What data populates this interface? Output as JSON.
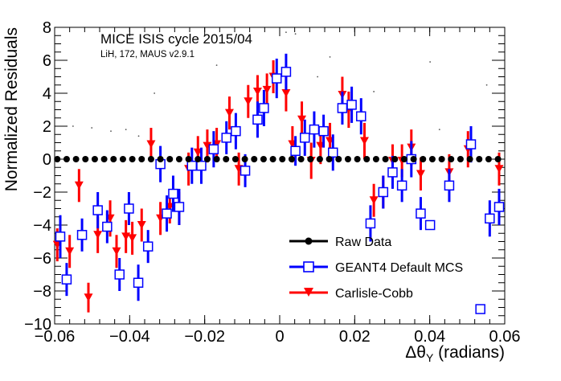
{
  "chart_data": {
    "type": "scatter",
    "title": "MICE ISIS cycle 2015/04",
    "subtitle": "LiH, 172, MAUS v2.9.1",
    "xlabel": "Δθ",
    "xlabel_sub": "Y",
    "xlabel_units": " (radians)",
    "ylabel": "Normalized Residuals",
    "xlim": [
      -0.06,
      0.06
    ],
    "ylim": [
      -10,
      8
    ],
    "x_ticks": [
      -0.06,
      -0.04,
      -0.02,
      0,
      0.02,
      0.04,
      0.06
    ],
    "x_tick_labels": [
      "−0.06",
      "−0.04",
      "−0.02",
      "0",
      "0.02",
      "0.04",
      "0.06"
    ],
    "y_ticks": [
      -10,
      -8,
      -6,
      -4,
      -2,
      0,
      2,
      4,
      6,
      8
    ],
    "y_tick_labels": [
      "−10",
      "−8",
      "−6",
      "−4",
      "−2",
      "0",
      "2",
      "4",
      "6",
      "8"
    ],
    "grid": false,
    "legend_position": "bottom-right",
    "series": [
      {
        "name": "Raw Data",
        "color": "#000000",
        "marker": "filled-circle",
        "x": [
          -0.0593,
          -0.0568,
          -0.0543,
          -0.0518,
          -0.0493,
          -0.0468,
          -0.0443,
          -0.0418,
          -0.0393,
          -0.0368,
          -0.0343,
          -0.0318,
          -0.0293,
          -0.0268,
          -0.0243,
          -0.0218,
          -0.0193,
          -0.0168,
          -0.0143,
          -0.0118,
          -0.0093,
          -0.0068,
          -0.0043,
          -0.0018,
          0.0007,
          0.0032,
          0.0057,
          0.0082,
          0.0107,
          0.0132,
          0.0157,
          0.0182,
          0.0207,
          0.0232,
          0.0257,
          0.0282,
          0.0307,
          0.0332,
          0.0357,
          0.0382,
          0.0407,
          0.0432,
          0.0457,
          0.0482,
          0.0507,
          0.0532,
          0.0557,
          0.0582
        ],
        "y": [
          0,
          0,
          0,
          0,
          0,
          0,
          0,
          0,
          0,
          0,
          0,
          0,
          0,
          0,
          0,
          0,
          0,
          0,
          0,
          0,
          0,
          0,
          0,
          0,
          0,
          0,
          0,
          0,
          0,
          0,
          0,
          0,
          0,
          0,
          0,
          0,
          0,
          0,
          0,
          0,
          0,
          0,
          0,
          0,
          0,
          0,
          0,
          0
        ],
        "yerr": [
          0,
          0,
          0,
          0,
          0,
          0,
          0,
          0,
          0,
          0,
          0,
          0,
          0,
          0,
          0,
          0,
          0,
          0,
          0,
          0,
          0,
          0,
          0,
          0,
          0,
          0,
          0,
          0,
          0,
          0,
          0,
          0,
          0,
          0,
          0,
          0,
          0,
          0,
          0,
          0,
          0,
          0,
          0,
          0,
          0,
          0,
          0,
          0
        ]
      },
      {
        "name": "GEANT4 Default MCS",
        "color": "#0000ff",
        "marker": "open-square",
        "x": [
          -0.0585,
          -0.0568,
          -0.0527,
          -0.0485,
          -0.046,
          -0.0427,
          -0.0402,
          -0.0377,
          -0.0351,
          -0.0318,
          -0.0301,
          -0.0284,
          -0.0268,
          -0.0234,
          -0.0209,
          -0.0176,
          -0.0142,
          -0.0117,
          -0.0092,
          -0.0059,
          -0.0042,
          -0.0008,
          0.0017,
          0.0042,
          0.0067,
          0.0092,
          0.0117,
          0.0142,
          0.0167,
          0.0192,
          0.0217,
          0.0242,
          0.0276,
          0.0301,
          0.0326,
          0.0351,
          0.0376,
          0.0401,
          0.0452,
          0.051,
          0.0535,
          0.056,
          0.0585
        ],
        "y": [
          -4.7,
          -7.3,
          -4.6,
          -3.1,
          -4.1,
          -7.0,
          -3.0,
          -7.5,
          -5.3,
          -0.3,
          -3.3,
          -2.1,
          -2.9,
          -0.4,
          -0.4,
          0.6,
          1.3,
          1.7,
          -0.7,
          2.4,
          3.1,
          4.9,
          5.3,
          0.5,
          1.3,
          1.8,
          1.7,
          0.4,
          3.1,
          3.3,
          2.6,
          -3.9,
          -2.0,
          -0.8,
          -1.6,
          0.0,
          -3.3,
          -4.0,
          -1.6,
          0.9,
          -9.1,
          -3.6,
          -2.9
        ],
        "yerr": [
          1.3,
          1.0,
          1.0,
          1.1,
          1.0,
          1.0,
          1.0,
          1.1,
          1.0,
          1.1,
          1.1,
          1.1,
          1.1,
          1.1,
          1.1,
          1.1,
          1.0,
          1.1,
          1.0,
          1.1,
          1.1,
          1.2,
          1.1,
          0.9,
          1.1,
          1.1,
          1.0,
          1.1,
          1.0,
          1.1,
          1.1,
          1.1,
          1.0,
          1.0,
          1.0,
          1.1,
          1.0,
          0.0,
          1.0,
          1.1,
          0.0,
          1.1,
          1.1
        ]
      },
      {
        "name": "Carlisle-Cobb",
        "color": "#ff0000",
        "marker": "filled-triangle-down",
        "x": [
          -0.0593,
          -0.056,
          -0.0535,
          -0.051,
          -0.0485,
          -0.0452,
          -0.0435,
          -0.041,
          -0.0393,
          -0.0368,
          -0.0343,
          -0.0318,
          -0.0293,
          -0.0268,
          -0.0243,
          -0.0218,
          -0.0193,
          -0.0168,
          -0.0134,
          -0.0109,
          -0.0084,
          -0.0059,
          -0.0034,
          -0.0017,
          0.0017,
          0.0034,
          0.0059,
          0.0084,
          0.0109,
          0.0134,
          0.0167,
          0.0184,
          0.0226,
          0.0251,
          0.0276,
          0.0301,
          0.0326,
          0.0351,
          0.0376,
          0.0452,
          0.0502,
          0.0585
        ],
        "y": [
          -5.2,
          -5.6,
          -1.6,
          -8.4,
          -4.6,
          -3.6,
          -5.6,
          -4.7,
          -4.8,
          -4.0,
          0.9,
          -3.6,
          -2.9,
          -3.0,
          -0.6,
          0.4,
          0.8,
          0.9,
          2.8,
          -0.6,
          3.5,
          4.1,
          4.2,
          5.0,
          4.0,
          0.9,
          2.4,
          -0.1,
          0.8,
          1.1,
          3.9,
          3.0,
          1.1,
          -2.5,
          -2.0,
          -0.1,
          -0.1,
          0.7,
          -0.9,
          -0.8,
          0.6,
          -0.6
        ],
        "yerr": [
          1.0,
          1.0,
          1.0,
          0.9,
          1.1,
          1.1,
          1.0,
          1.0,
          1.0,
          1.0,
          1.0,
          1.0,
          1.0,
          1.0,
          1.0,
          1.0,
          1.0,
          1.0,
          1.0,
          1.0,
          1.0,
          1.0,
          1.0,
          1.0,
          1.1,
          1.1,
          1.1,
          1.1,
          1.1,
          1.1,
          1.1,
          1.1,
          1.1,
          1.0,
          1.0,
          1.0,
          1.0,
          1.1,
          1.0,
          1.1,
          1.1,
          1.0
        ]
      }
    ],
    "stray_dots": {
      "x": [
        -0.0551,
        -0.0501,
        -0.045,
        -0.041,
        -0.0376,
        -0.0334,
        -0.0168,
        0.0017,
        0.0042,
        0.0101,
        0.0134,
        0.0251,
        0.0401,
        0.0426,
        0.0552
      ],
      "y": [
        2.0,
        1.9,
        1.7,
        1.8,
        1.4,
        4.0,
        5.7,
        7.7,
        7.6,
        5.0,
        6.2,
        4.1,
        5.9,
        1.8,
        4.5
      ]
    }
  }
}
